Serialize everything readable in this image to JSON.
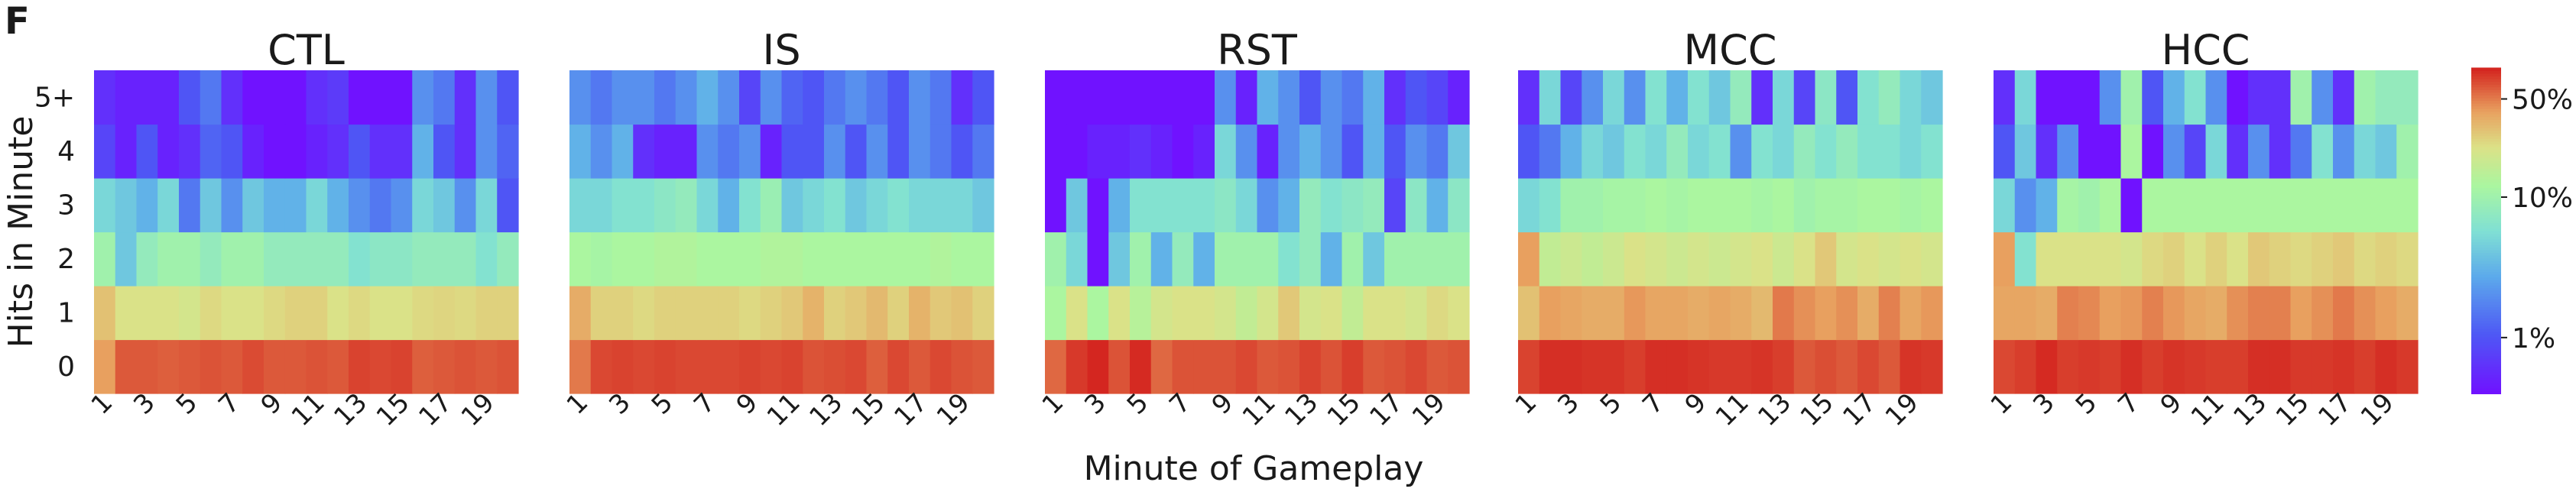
{
  "panel_label": "F",
  "chart_data": {
    "type": "heatmap",
    "xlabel": "Minute of Gameplay",
    "ylabel": "Hits in Minute",
    "y_categories": [
      "0",
      "1",
      "2",
      "3",
      "4",
      "5+"
    ],
    "x_minutes": [
      1,
      2,
      3,
      4,
      5,
      6,
      7,
      8,
      9,
      10,
      11,
      12,
      13,
      14,
      15,
      16,
      17,
      18,
      19,
      20
    ],
    "x_tick_labels": [
      "1",
      "3",
      "5",
      "7",
      "9",
      "11",
      "13",
      "15",
      "17",
      "19"
    ],
    "colormap": "rainbow (red = high, violet = low)",
    "colorbar": {
      "scale": "log",
      "range": [
        "<0.5%",
        ">50%"
      ],
      "tick_labels": [
        "1%",
        "10%",
        "50%"
      ],
      "tick_values": [
        0.01,
        0.1,
        0.5
      ]
    },
    "note": "values are proportion of participants (fraction) per hits bin, rows ordered 0,1,2,3,4,5+",
    "panels": [
      {
        "title": "CTL",
        "rows": {
          "0": [
            0.4,
            0.6,
            0.6,
            0.58,
            0.6,
            0.62,
            0.6,
            0.65,
            0.6,
            0.6,
            0.62,
            0.6,
            0.68,
            0.66,
            0.68,
            0.58,
            0.6,
            0.62,
            0.6,
            0.62
          ],
          "1": [
            0.3,
            0.22,
            0.22,
            0.22,
            0.2,
            0.24,
            0.22,
            0.22,
            0.24,
            0.26,
            0.26,
            0.22,
            0.24,
            0.22,
            0.22,
            0.24,
            0.25,
            0.24,
            0.26,
            0.26
          ],
          "2": [
            0.1,
            0.04,
            0.08,
            0.1,
            0.1,
            0.08,
            0.1,
            0.1,
            0.08,
            0.08,
            0.08,
            0.08,
            0.06,
            0.07,
            0.07,
            0.08,
            0.08,
            0.08,
            0.06,
            0.08
          ],
          "3": [
            0.05,
            0.04,
            0.03,
            0.05,
            0.015,
            0.04,
            0.02,
            0.04,
            0.03,
            0.03,
            0.05,
            0.03,
            0.02,
            0.015,
            0.02,
            0.05,
            0.04,
            0.02,
            0.05,
            0.01
          ],
          "4": [
            0.008,
            0.005,
            0.01,
            0.005,
            0.006,
            0.012,
            0.01,
            0.005,
            0.004,
            0.004,
            0.005,
            0.006,
            0.01,
            0.006,
            0.006,
            0.03,
            0.01,
            0.006,
            0.02,
            0.012
          ],
          "5+": [
            0.006,
            0.005,
            0.005,
            0.005,
            0.01,
            0.015,
            0.006,
            0.004,
            0.004,
            0.004,
            0.006,
            0.007,
            0.004,
            0.004,
            0.004,
            0.02,
            0.015,
            0.006,
            0.02,
            0.01
          ]
        }
      },
      {
        "title": "IS",
        "rows": {
          "0": [
            0.5,
            0.66,
            0.68,
            0.66,
            0.68,
            0.66,
            0.66,
            0.66,
            0.68,
            0.66,
            0.68,
            0.62,
            0.64,
            0.66,
            0.58,
            0.66,
            0.6,
            0.66,
            0.62,
            0.6
          ],
          "1": [
            0.36,
            0.26,
            0.26,
            0.24,
            0.26,
            0.26,
            0.26,
            0.26,
            0.24,
            0.26,
            0.28,
            0.34,
            0.26,
            0.28,
            0.32,
            0.26,
            0.34,
            0.28,
            0.3,
            0.26
          ],
          "2": [
            0.12,
            0.11,
            0.12,
            0.12,
            0.13,
            0.13,
            0.12,
            0.12,
            0.12,
            0.13,
            0.13,
            0.12,
            0.12,
            0.12,
            0.12,
            0.12,
            0.12,
            0.13,
            0.12,
            0.12
          ],
          "3": [
            0.05,
            0.05,
            0.06,
            0.06,
            0.07,
            0.08,
            0.05,
            0.03,
            0.06,
            0.09,
            0.04,
            0.05,
            0.06,
            0.04,
            0.05,
            0.06,
            0.05,
            0.05,
            0.05,
            0.04
          ],
          "4": [
            0.03,
            0.02,
            0.03,
            0.006,
            0.005,
            0.005,
            0.02,
            0.015,
            0.02,
            0.005,
            0.01,
            0.01,
            0.02,
            0.01,
            0.02,
            0.01,
            0.02,
            0.015,
            0.01,
            0.015
          ],
          "5+": [
            0.02,
            0.015,
            0.02,
            0.02,
            0.015,
            0.02,
            0.03,
            0.02,
            0.008,
            0.02,
            0.012,
            0.01,
            0.015,
            0.02,
            0.015,
            0.01,
            0.02,
            0.015,
            0.006,
            0.01
          ]
        }
      },
      {
        "title": "RST",
        "rows": {
          "0": [
            0.55,
            0.72,
            0.8,
            0.62,
            0.78,
            0.55,
            0.62,
            0.62,
            0.62,
            0.66,
            0.6,
            0.62,
            0.68,
            0.62,
            0.7,
            0.6,
            0.62,
            0.66,
            0.6,
            0.62
          ],
          "1": [
            0.12,
            0.22,
            0.12,
            0.22,
            0.14,
            0.2,
            0.22,
            0.22,
            0.2,
            0.16,
            0.2,
            0.28,
            0.2,
            0.22,
            0.16,
            0.22,
            0.22,
            0.2,
            0.24,
            0.22
          ],
          "2": [
            0.1,
            0.05,
            0.004,
            0.04,
            0.1,
            0.03,
            0.08,
            0.03,
            0.1,
            0.1,
            0.1,
            0.06,
            0.08,
            0.03,
            0.1,
            0.04,
            0.1,
            0.1,
            0.1,
            0.1
          ],
          "3": [
            0.004,
            0.04,
            0.004,
            0.03,
            0.06,
            0.06,
            0.06,
            0.06,
            0.07,
            0.05,
            0.02,
            0.03,
            0.08,
            0.06,
            0.07,
            0.08,
            0.008,
            0.07,
            0.03,
            0.07
          ],
          "4": [
            0.004,
            0.004,
            0.005,
            0.005,
            0.006,
            0.005,
            0.004,
            0.005,
            0.05,
            0.02,
            0.005,
            0.02,
            0.03,
            0.02,
            0.01,
            0.03,
            0.01,
            0.02,
            0.015,
            0.04
          ],
          "5+": [
            0.004,
            0.004,
            0.004,
            0.004,
            0.004,
            0.004,
            0.004,
            0.004,
            0.02,
            0.005,
            0.03,
            0.02,
            0.01,
            0.02,
            0.015,
            0.03,
            0.006,
            0.01,
            0.008,
            0.005
          ]
        }
      },
      {
        "title": "MCC",
        "rows": {
          "0": [
            0.68,
            0.76,
            0.76,
            0.74,
            0.74,
            0.7,
            0.76,
            0.76,
            0.74,
            0.72,
            0.72,
            0.74,
            0.7,
            0.6,
            0.64,
            0.6,
            0.66,
            0.6,
            0.74,
            0.72
          ],
          "1": [
            0.3,
            0.4,
            0.38,
            0.36,
            0.36,
            0.42,
            0.38,
            0.38,
            0.36,
            0.38,
            0.36,
            0.32,
            0.5,
            0.44,
            0.4,
            0.44,
            0.36,
            0.48,
            0.38,
            0.42
          ],
          "2": [
            0.4,
            0.16,
            0.18,
            0.16,
            0.18,
            0.22,
            0.2,
            0.18,
            0.2,
            0.18,
            0.2,
            0.22,
            0.18,
            0.22,
            0.28,
            0.2,
            0.22,
            0.2,
            0.22,
            0.2
          ],
          "3": [
            0.05,
            0.06,
            0.1,
            0.1,
            0.11,
            0.11,
            0.12,
            0.11,
            0.12,
            0.12,
            0.12,
            0.11,
            0.12,
            0.1,
            0.11,
            0.11,
            0.12,
            0.12,
            0.11,
            0.12
          ],
          "4": [
            0.01,
            0.015,
            0.03,
            0.05,
            0.04,
            0.06,
            0.05,
            0.08,
            0.05,
            0.06,
            0.02,
            0.06,
            0.05,
            0.08,
            0.06,
            0.08,
            0.06,
            0.06,
            0.05,
            0.06
          ],
          "5+": [
            0.006,
            0.05,
            0.008,
            0.02,
            0.05,
            0.02,
            0.06,
            0.03,
            0.06,
            0.04,
            0.08,
            0.006,
            0.05,
            0.008,
            0.07,
            0.01,
            0.06,
            0.08,
            0.05,
            0.04
          ]
        }
      },
      {
        "title": "HCC",
        "rows": {
          "0": [
            0.66,
            0.7,
            0.78,
            0.7,
            0.72,
            0.7,
            0.76,
            0.7,
            0.74,
            0.72,
            0.7,
            0.7,
            0.76,
            0.76,
            0.72,
            0.72,
            0.74,
            0.7,
            0.76,
            0.72
          ],
          "1": [
            0.38,
            0.38,
            0.36,
            0.48,
            0.46,
            0.4,
            0.42,
            0.48,
            0.42,
            0.38,
            0.36,
            0.44,
            0.48,
            0.48,
            0.4,
            0.44,
            0.5,
            0.44,
            0.4,
            0.36
          ],
          "2": [
            0.4,
            0.06,
            0.22,
            0.22,
            0.22,
            0.22,
            0.2,
            0.24,
            0.26,
            0.22,
            0.26,
            0.22,
            0.28,
            0.26,
            0.24,
            0.26,
            0.28,
            0.24,
            0.26,
            0.24
          ],
          "3": [
            0.05,
            0.02,
            0.03,
            0.11,
            0.1,
            0.12,
            0.004,
            0.12,
            0.12,
            0.12,
            0.12,
            0.12,
            0.12,
            0.12,
            0.12,
            0.12,
            0.12,
            0.12,
            0.12,
            0.12
          ],
          "4": [
            0.01,
            0.04,
            0.006,
            0.02,
            0.004,
            0.004,
            0.12,
            0.004,
            0.02,
            0.008,
            0.05,
            0.006,
            0.02,
            0.006,
            0.015,
            0.06,
            0.02,
            0.05,
            0.04,
            0.1
          ],
          "5+": [
            0.006,
            0.05,
            0.004,
            0.004,
            0.004,
            0.02,
            0.1,
            0.01,
            0.03,
            0.06,
            0.02,
            0.004,
            0.006,
            0.006,
            0.1,
            0.02,
            0.006,
            0.1,
            0.08,
            0.08
          ]
        }
      }
    ]
  }
}
